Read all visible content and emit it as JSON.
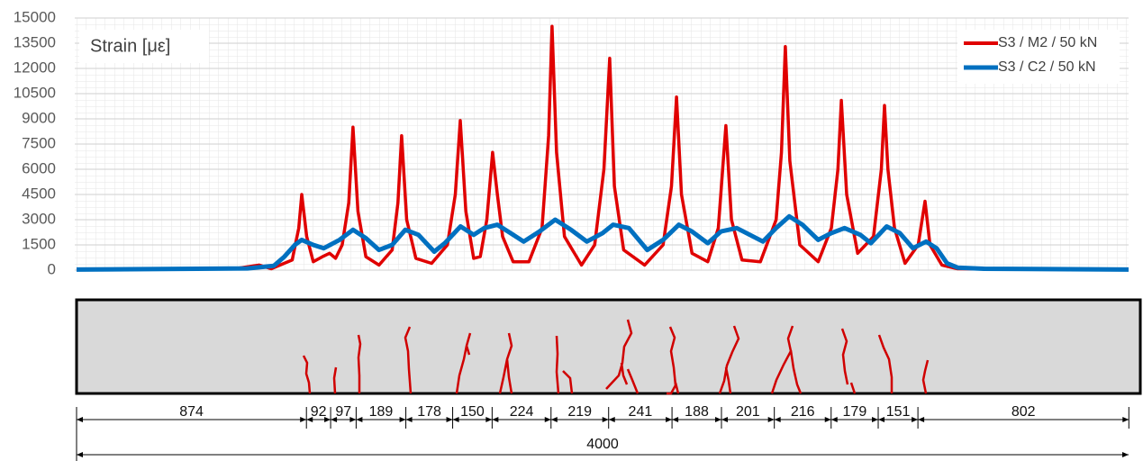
{
  "chart_data": {
    "type": "line",
    "annotation": "Strain [με]",
    "xlim": [
      0,
      4000
    ],
    "ylim": [
      0,
      15000
    ],
    "yticks": [
      0,
      1500,
      3000,
      4500,
      6000,
      7500,
      9000,
      10500,
      12000,
      13500,
      15000
    ],
    "grid": true,
    "legend": "top-right",
    "series": [
      {
        "name": "S3 / M2 / 50 kN",
        "color": "#e00000",
        "x": [
          0,
          600,
          695,
          740,
          820,
          845,
          856,
          875,
          900,
          935,
          962,
          985,
          1010,
          1035,
          1051,
          1070,
          1100,
          1150,
          1200,
          1222,
          1236,
          1255,
          1290,
          1350,
          1410,
          1440,
          1459,
          1480,
          1510,
          1535,
          1560,
          1582,
          1600,
          1620,
          1660,
          1720,
          1770,
          1795,
          1808,
          1825,
          1855,
          1920,
          1970,
          2005,
          2027,
          2045,
          2080,
          2160,
          2230,
          2262,
          2281,
          2300,
          2340,
          2400,
          2440,
          2469,
          2490,
          2530,
          2600,
          2660,
          2680,
          2695,
          2712,
          2750,
          2820,
          2870,
          2895,
          2908,
          2928,
          2970,
          3030,
          3060,
          3072,
          3085,
          3110,
          3150,
          3200,
          3226,
          3245,
          3290,
          3350,
          4000
        ],
        "values": [
          50,
          80,
          300,
          80,
          600,
          2500,
          4500,
          2000,
          500,
          800,
          1000,
          700,
          1500,
          4000,
          8500,
          3500,
          800,
          300,
          1200,
          4000,
          8000,
          3000,
          700,
          400,
          1500,
          4500,
          8900,
          3500,
          700,
          800,
          3000,
          7000,
          4500,
          2000,
          500,
          500,
          2500,
          8000,
          14500,
          7000,
          2000,
          300,
          1500,
          6000,
          12600,
          5000,
          1200,
          300,
          1500,
          5000,
          10300,
          4500,
          1000,
          500,
          2500,
          8600,
          3000,
          600,
          500,
          3000,
          7000,
          13300,
          6500,
          1500,
          500,
          2500,
          6000,
          10100,
          4500,
          1000,
          2000,
          6000,
          9800,
          6000,
          2500,
          400,
          1500,
          4100,
          1500,
          300,
          80,
          20
        ]
      },
      {
        "name": "S3 / C2 / 50 kN",
        "color": "#0070c0",
        "x": [
          0,
          650,
          750,
          790,
          830,
          856,
          900,
          940,
          1000,
          1051,
          1100,
          1150,
          1200,
          1250,
          1300,
          1360,
          1400,
          1460,
          1510,
          1550,
          1600,
          1650,
          1700,
          1760,
          1820,
          1880,
          1940,
          2000,
          2040,
          2100,
          2170,
          2230,
          2290,
          2340,
          2400,
          2450,
          2510,
          2560,
          2610,
          2660,
          2710,
          2760,
          2820,
          2870,
          2920,
          2980,
          3020,
          3080,
          3130,
          3180,
          3230,
          3270,
          3310,
          3350,
          3450,
          4000
        ],
        "values": [
          30,
          100,
          250,
          800,
          1500,
          1800,
          1500,
          1300,
          1800,
          2400,
          1900,
          1200,
          1500,
          2400,
          2100,
          1100,
          1600,
          2600,
          2100,
          2500,
          2700,
          2200,
          1700,
          2300,
          3000,
          2400,
          1700,
          2200,
          2700,
          2500,
          1200,
          1800,
          2700,
          2300,
          1600,
          2300,
          2500,
          2100,
          1700,
          2500,
          3200,
          2700,
          1800,
          2200,
          2500,
          2100,
          1600,
          2600,
          2200,
          1300,
          1700,
          1300,
          400,
          150,
          80,
          30
        ]
      }
    ]
  },
  "beam": {
    "crack_spacings": [
      874,
      92,
      97,
      189,
      178,
      150,
      224,
      219,
      241,
      188,
      201,
      216,
      179,
      151,
      802
    ],
    "total": 4000
  }
}
